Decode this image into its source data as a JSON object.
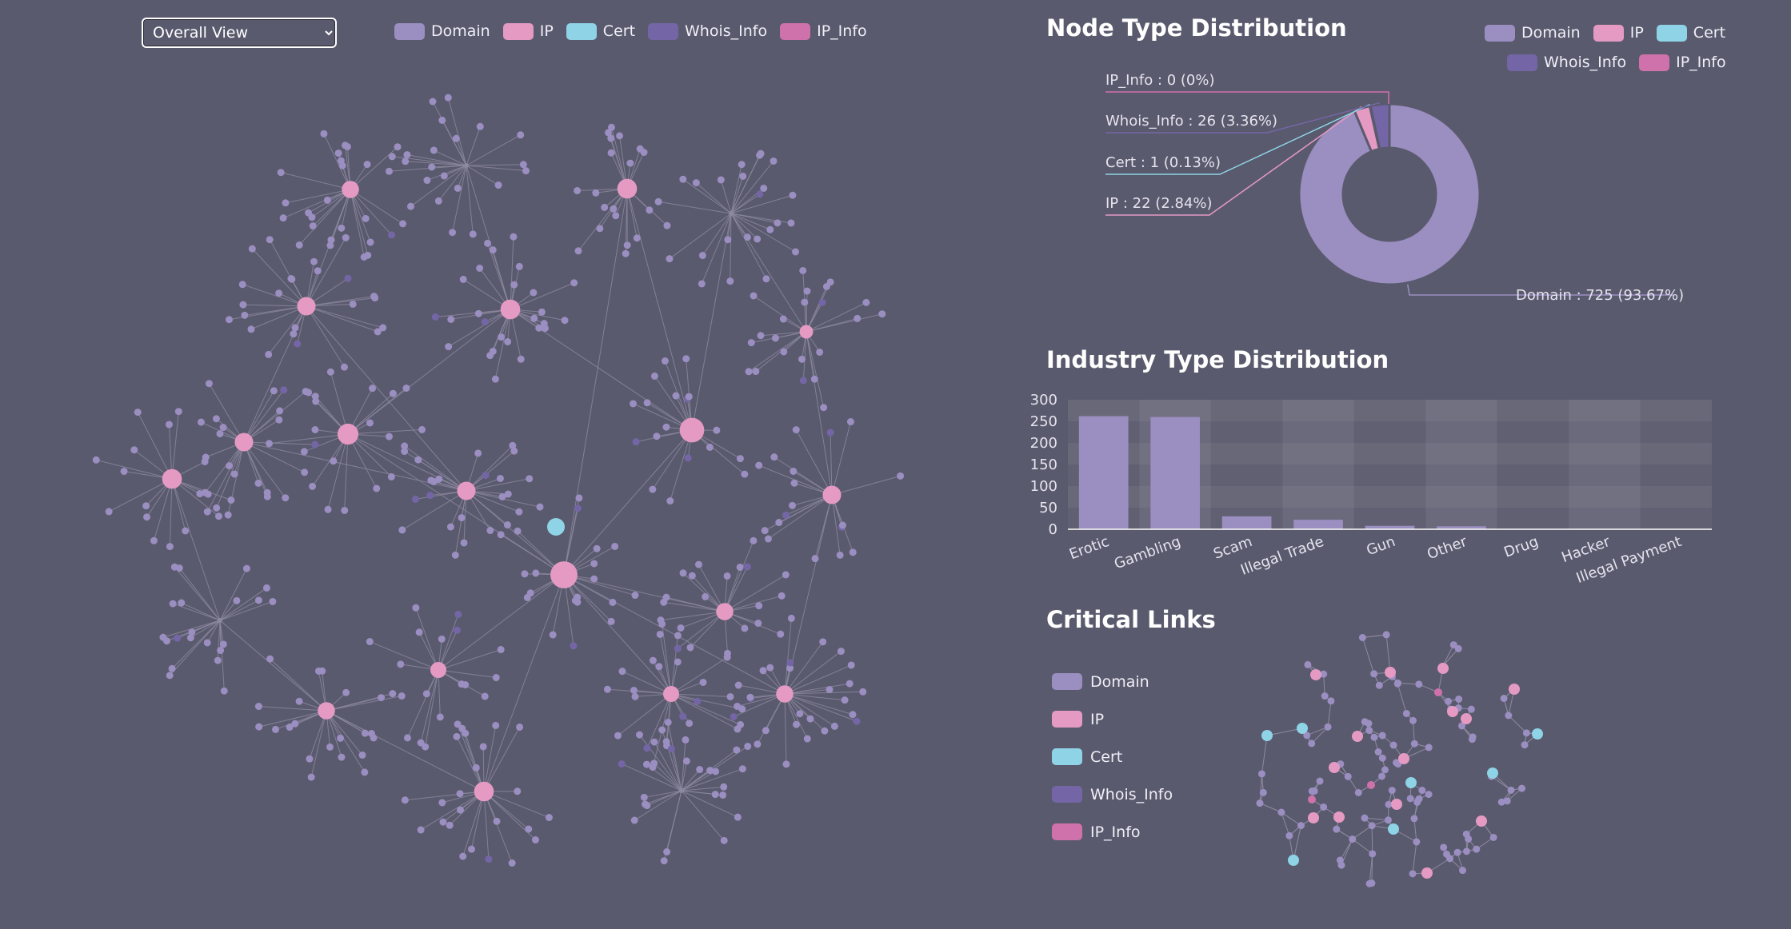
{
  "controls": {
    "view_select": {
      "selected": "Overall View"
    }
  },
  "node_types": [
    {
      "name": "Domain",
      "color": "#9b8ec0"
    },
    {
      "name": "IP",
      "color": "#e59ac3"
    },
    {
      "name": "Cert",
      "color": "#8fd3e6"
    },
    {
      "name": "Whois_Info",
      "color": "#7466a6"
    },
    {
      "name": "IP_Info",
      "color": "#cf72ac"
    }
  ],
  "pie": {
    "title": "Node Type Distribution",
    "chart_data": {
      "type": "pie",
      "slices": [
        {
          "name": "Domain",
          "value": 725,
          "label": "Domain : 725 (93.67%)",
          "color": "#9b8ec0"
        },
        {
          "name": "IP",
          "value": 22,
          "label": "IP : 22 (2.84%)",
          "color": "#e59ac3"
        },
        {
          "name": "Cert",
          "value": 1,
          "label": "Cert : 1 (0.13%)",
          "color": "#8fd3e6"
        },
        {
          "name": "Whois_Info",
          "value": 26,
          "label": "Whois_Info : 26 (3.36%)",
          "color": "#7466a6"
        },
        {
          "name": "IP_Info",
          "value": 0,
          "label": "IP_Info : 0 (0%)",
          "color": "#cf72ac"
        }
      ]
    }
  },
  "bar": {
    "title": "Industry Type Distribution",
    "chart_data": {
      "type": "bar",
      "categories": [
        "Erotic",
        "Gambling",
        "Scam",
        "Illegal Trade",
        "Gun",
        "Other",
        "Drug",
        "Hacker",
        "Illegal Payment"
      ],
      "values": [
        262,
        260,
        30,
        22,
        8,
        7,
        1,
        1,
        0
      ],
      "ylim": [
        0,
        300
      ],
      "yticks": [
        "0",
        "50",
        "100",
        "150",
        "200",
        "250",
        "300"
      ],
      "color": "#9b8ec0"
    }
  },
  "critical": {
    "title": "Critical Links"
  }
}
